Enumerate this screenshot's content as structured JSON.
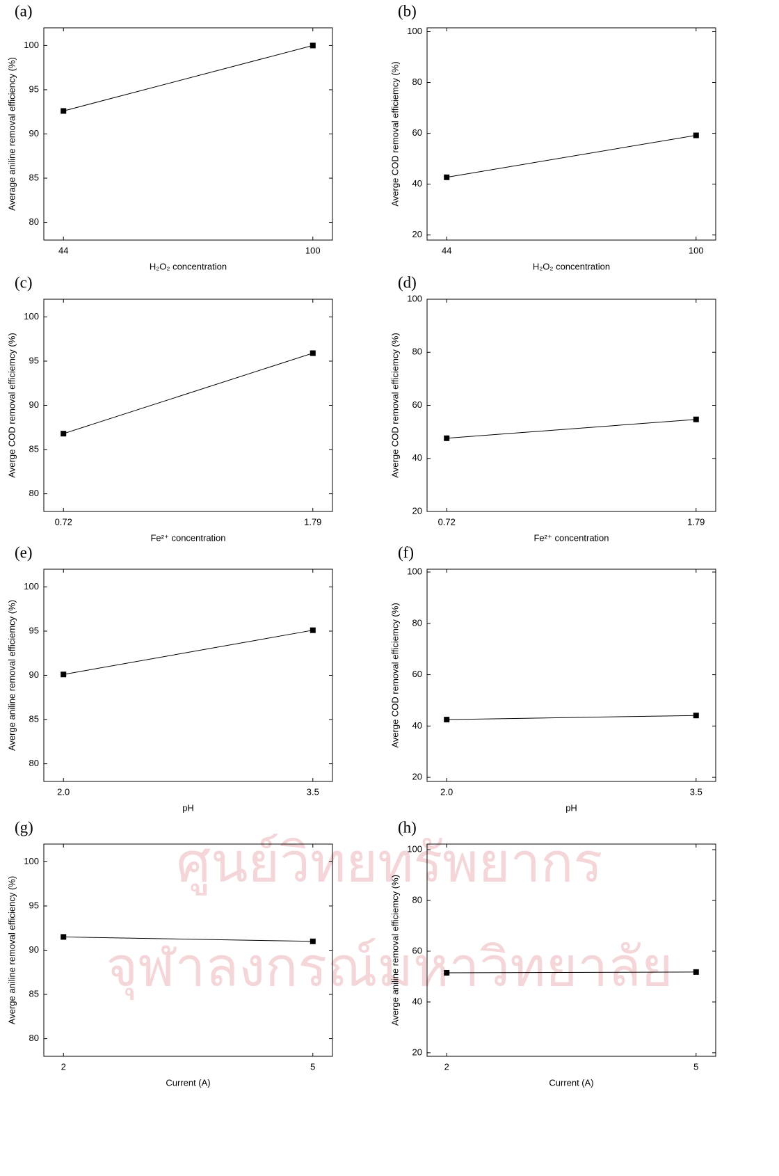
{
  "watermark": [
    "ศูนย์วิทยทรัพยากร",
    "จุฬาลงกรณ์มหาวิทยาลัย"
  ],
  "chart_data": [
    {
      "type": "line",
      "panel": "(a)",
      "xlabel": "H₂O₂ concentration",
      "ylabel": "Average aniline removal efficiency (%)",
      "categories": [
        "44",
        "100"
      ],
      "values": [
        92.6,
        100.0
      ],
      "color": "#000000",
      "ylim": [
        78,
        102
      ],
      "yticks": [
        80,
        85,
        90,
        95,
        100
      ]
    },
    {
      "type": "line",
      "panel": "(b)",
      "xlabel": "H₂O₂ concentration",
      "ylabel": "Averge COD removal efficiemcy (%)",
      "categories": [
        "44",
        "100"
      ],
      "values": [
        42.7,
        59.2
      ],
      "color": "#000000",
      "ylim": [
        18,
        101.5
      ],
      "yticks": [
        20,
        40,
        60,
        80,
        100
      ]
    },
    {
      "type": "line",
      "panel": "(c)",
      "xlabel": "Fe²⁺ concentration",
      "ylabel": "Averge COD removal efficiemcy (%)",
      "categories": [
        "0.72",
        "1.79"
      ],
      "values": [
        86.8,
        95.9
      ],
      "color": "#000000",
      "ylim": [
        78,
        102
      ],
      "yticks": [
        80,
        85,
        90,
        95,
        100
      ]
    },
    {
      "type": "line",
      "panel": "(d)",
      "xlabel": "Fe²⁺ concentration",
      "ylabel": "Averge COD removal efficiemcy (%)",
      "categories": [
        "0.72",
        "1.79"
      ],
      "values": [
        47.6,
        54.7
      ],
      "color": "#000000",
      "ylim": [
        20,
        100
      ],
      "yticks": [
        20,
        40,
        60,
        80,
        100
      ]
    },
    {
      "type": "line",
      "panel": "(e)",
      "xlabel": "pH",
      "ylabel": "Averge aniline removal efficiemcy (%)",
      "categories": [
        "2.0",
        "3.5"
      ],
      "values": [
        90.1,
        95.1
      ],
      "color": "#000000",
      "ylim": [
        78,
        102
      ],
      "yticks": [
        80,
        85,
        90,
        95,
        100
      ]
    },
    {
      "type": "line",
      "panel": "(f)",
      "xlabel": "pH",
      "ylabel": "Averge COD removal efficiemcy (%)",
      "categories": [
        "2.0",
        "3.5"
      ],
      "values": [
        42.5,
        44.1
      ],
      "color": "#000000",
      "ylim": [
        18.4,
        101.1
      ],
      "yticks": [
        20,
        40,
        60,
        80,
        100
      ]
    },
    {
      "type": "line",
      "panel": "(g)",
      "xlabel": "Current (A)",
      "ylabel": "Averge aniline removal efficiency (%)",
      "categories": [
        "2",
        "5"
      ],
      "values": [
        91.5,
        91.0
      ],
      "color": "#000000",
      "ylim": [
        78,
        102
      ],
      "yticks": [
        80,
        85,
        90,
        95,
        100
      ]
    },
    {
      "type": "line",
      "panel": "(h)",
      "xlabel": "Current (A)",
      "ylabel": "Averge aniline removal efficiemcy (%)",
      "categories": [
        "2",
        "5"
      ],
      "values": [
        51.5,
        51.8
      ],
      "color": "#000000",
      "ylim": [
        18.6,
        102.2
      ],
      "yticks": [
        20,
        40,
        60,
        80,
        100
      ]
    }
  ]
}
